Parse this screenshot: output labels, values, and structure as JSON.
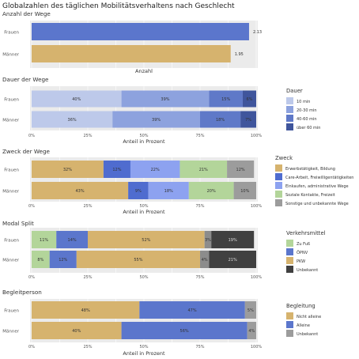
{
  "title": "Globalzahlen des täglichen Mobilitätsverhaltens nach Geschlecht",
  "colors": {
    "panel_bg": "#ebebeb",
    "grid": "#ffffff",
    "text": "#333333",
    "muted": "#555555"
  },
  "chart_data": [
    {
      "type": "bar",
      "title": "Anzahl der Wege",
      "categories": [
        "Frauen",
        "Männer"
      ],
      "values": [
        2.13,
        1.95
      ],
      "value_labels": [
        "2.13",
        "1.95"
      ],
      "xlabel": "Anzahl",
      "xlim": [
        0,
        2.2
      ],
      "colors": [
        "#5b76cc",
        "#d6b36e"
      ],
      "grid": true
    },
    {
      "type": "bar",
      "stacked": true,
      "title": "Dauer der Wege",
      "categories": [
        "Frauen",
        "Männer"
      ],
      "series": [
        {
          "name": "10 min",
          "values": [
            40,
            36
          ],
          "labels": [
            "40%",
            "36%"
          ],
          "color": "#bdc9ea"
        },
        {
          "name": "20-30 min",
          "values": [
            39,
            39
          ],
          "labels": [
            "39%",
            "39%"
          ],
          "color": "#8da2de"
        },
        {
          "name": "40-60 min",
          "values": [
            15,
            18
          ],
          "labels": [
            "15%",
            "18%"
          ],
          "color": "#5f79c8"
        },
        {
          "name": "über 60 min",
          "values": [
            6,
            7
          ],
          "labels": [
            "6%",
            "7%"
          ],
          "color": "#3f559c"
        }
      ],
      "xlabel": "Anteil in Prozent",
      "xlim": [
        0,
        100
      ],
      "xticks": [
        "0%",
        "25%",
        "50%",
        "75%",
        "100%"
      ],
      "legend": {
        "title": "Dauer",
        "placement": "right"
      },
      "grid": true
    },
    {
      "type": "bar",
      "stacked": true,
      "title": "Zweck der Wege",
      "categories": [
        "Frauen",
        "Männer"
      ],
      "series": [
        {
          "name": "Erwerbstätigkeit, Bildung",
          "values": [
            32,
            43
          ],
          "labels": [
            "32%",
            "43%"
          ],
          "color": "#d6b36e"
        },
        {
          "name": "Care-Arbeit, Freiwilligentätigkeiten",
          "values": [
            12,
            9
          ],
          "labels": [
            "12%",
            "9%"
          ],
          "color": "#4f6ccf"
        },
        {
          "name": "Einkaufen, administrative Wege",
          "values": [
            22,
            18
          ],
          "labels": [
            "22%",
            "18%"
          ],
          "color": "#8da2f0"
        },
        {
          "name": "Soziale Kontakte, Freizeit",
          "values": [
            21,
            20
          ],
          "labels": [
            "21%",
            "20%"
          ],
          "color": "#b3d59a"
        },
        {
          "name": "Sonstige und unbekannte Wege",
          "values": [
            12,
            10
          ],
          "labels": [
            "12%",
            "10%"
          ],
          "color": "#9c9c9c"
        }
      ],
      "xlabel": "Anteil in Prozent",
      "xlim": [
        0,
        100
      ],
      "xticks": [
        "0%",
        "25%",
        "50%",
        "75%",
        "100%"
      ],
      "legend": {
        "title": "Zweck",
        "placement": "right"
      },
      "grid": true
    },
    {
      "type": "bar",
      "stacked": true,
      "title": "Modal Split",
      "categories": [
        "Frauen",
        "Männer"
      ],
      "series": [
        {
          "name": "Zu Fuß",
          "values": [
            11,
            8
          ],
          "labels": [
            "11%",
            "8%"
          ],
          "color": "#b3d59a"
        },
        {
          "name": "ÖPNV",
          "values": [
            14,
            12
          ],
          "labels": [
            "14%",
            "12%"
          ],
          "color": "#5b76cc"
        },
        {
          "name": "PKW",
          "values": [
            52,
            55
          ],
          "labels": [
            "52%",
            "55%"
          ],
          "color": "#d6b36e"
        },
        {
          "name": "",
          "values": [
            3,
            4
          ],
          "labels": [
            "3%",
            "4%"
          ],
          "color": "#8c8c8c"
        },
        {
          "name": "Unbekannt",
          "values": [
            19,
            21
          ],
          "labels": [
            "19%",
            "21%"
          ],
          "color": "#404040"
        }
      ],
      "xlabel": "",
      "xlim": [
        0,
        100
      ],
      "xticks": [
        "0%",
        "25%",
        "50%",
        "75%",
        "100%"
      ],
      "legend": {
        "title": "Verkehrsmittel",
        "placement": "right",
        "items": [
          "Zu Fuß",
          "ÖPNV",
          "PKW",
          "Unbekannt"
        ]
      },
      "grid": true
    },
    {
      "type": "bar",
      "stacked": true,
      "title": "Begleitperson",
      "categories": [
        "Frauen",
        "Männer"
      ],
      "series": [
        {
          "name": "Nicht alleine",
          "values": [
            48,
            40
          ],
          "labels": [
            "48%",
            "40%"
          ],
          "color": "#d6b36e"
        },
        {
          "name": "Alleine",
          "values": [
            47,
            56
          ],
          "labels": [
            "47%",
            "56%"
          ],
          "color": "#5b76cc"
        },
        {
          "name": "Unbekannt",
          "values": [
            5,
            4
          ],
          "labels": [
            "5%",
            "4%"
          ],
          "color": "#9c9c9c"
        }
      ],
      "xlabel": "Anteil in Prozent",
      "xlim": [
        0,
        100
      ],
      "xticks": [
        "0%",
        "25%",
        "50%",
        "75%",
        "100%"
      ],
      "legend": {
        "title": "Begleitung",
        "placement": "right"
      },
      "grid": true
    }
  ]
}
